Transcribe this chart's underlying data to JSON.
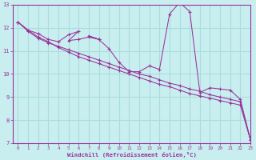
{
  "xlabel": "Windchill (Refroidissement éolien,°C)",
  "bg_color": "#c8eef0",
  "line_color": "#993399",
  "grid_color": "#aadddd",
  "axis_color": "#993399",
  "xlim": [
    -0.5,
    23
  ],
  "ylim": [
    7,
    13
  ],
  "yticks": [
    7,
    8,
    9,
    10,
    11,
    12,
    13
  ],
  "xticks": [
    0,
    1,
    2,
    3,
    4,
    5,
    6,
    7,
    8,
    9,
    10,
    11,
    12,
    13,
    14,
    15,
    16,
    17,
    18,
    19,
    20,
    21,
    22,
    23
  ],
  "series1": [
    [
      0,
      12.25
    ],
    [
      1,
      11.9
    ],
    [
      2,
      11.75
    ],
    [
      3,
      11.5
    ],
    [
      4,
      11.4
    ],
    [
      5,
      11.7
    ],
    [
      6,
      11.85
    ],
    [
      5,
      11.45
    ],
    [
      6,
      11.5
    ],
    [
      7,
      11.6
    ],
    [
      8,
      11.5
    ],
    [
      7,
      11.65
    ],
    [
      8,
      11.5
    ],
    [
      9,
      11.1
    ],
    [
      10,
      10.5
    ],
    [
      11,
      10.1
    ],
    [
      12,
      10.1
    ],
    [
      13,
      10.35
    ],
    [
      14,
      10.2
    ],
    [
      15,
      12.6
    ],
    [
      16,
      13.1
    ],
    [
      17,
      12.7
    ],
    [
      18,
      9.2
    ],
    [
      19,
      9.4
    ],
    [
      20,
      9.35
    ],
    [
      21,
      9.3
    ],
    [
      22,
      8.9
    ],
    [
      23,
      7.15
    ]
  ],
  "series2": [
    [
      0,
      12.25
    ],
    [
      1,
      11.9
    ],
    [
      2,
      11.6
    ],
    [
      3,
      11.4
    ],
    [
      4,
      11.15
    ],
    [
      5,
      10.95
    ],
    [
      6,
      10.75
    ],
    [
      7,
      10.6
    ],
    [
      8,
      10.45
    ],
    [
      9,
      10.3
    ],
    [
      10,
      10.15
    ],
    [
      11,
      10.0
    ],
    [
      12,
      9.85
    ],
    [
      13,
      9.7
    ],
    [
      14,
      9.55
    ],
    [
      15,
      9.45
    ],
    [
      16,
      9.3
    ],
    [
      17,
      9.15
    ],
    [
      18,
      9.05
    ],
    [
      19,
      8.95
    ],
    [
      20,
      8.85
    ],
    [
      21,
      8.75
    ],
    [
      22,
      8.65
    ],
    [
      23,
      7.15
    ]
  ],
  "series3": [
    [
      0,
      12.25
    ],
    [
      1,
      11.85
    ],
    [
      2,
      11.55
    ],
    [
      3,
      11.35
    ],
    [
      4,
      11.2
    ],
    [
      5,
      11.05
    ],
    [
      6,
      10.9
    ],
    [
      7,
      10.75
    ],
    [
      8,
      10.6
    ],
    [
      9,
      10.45
    ],
    [
      10,
      10.3
    ],
    [
      11,
      10.15
    ],
    [
      12,
      10.0
    ],
    [
      13,
      9.9
    ],
    [
      14,
      9.75
    ],
    [
      15,
      9.6
    ],
    [
      16,
      9.5
    ],
    [
      17,
      9.35
    ],
    [
      18,
      9.25
    ],
    [
      19,
      9.1
    ],
    [
      20,
      9.0
    ],
    [
      21,
      8.9
    ],
    [
      22,
      8.8
    ],
    [
      23,
      7.15
    ]
  ]
}
